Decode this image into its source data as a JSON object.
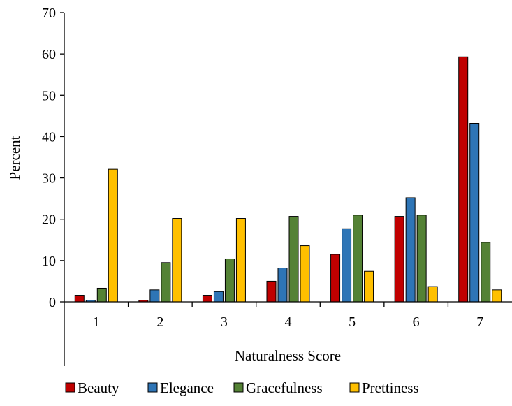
{
  "chart_data": {
    "type": "bar",
    "categories": [
      "1",
      "2",
      "3",
      "4",
      "5",
      "6",
      "7"
    ],
    "series": [
      {
        "name": "Beauty",
        "color": "#C00000",
        "values": [
          1.6,
          0.4,
          1.6,
          5.0,
          11.5,
          20.7,
          59.3
        ]
      },
      {
        "name": "Elegance",
        "color": "#2E75B6",
        "values": [
          0.4,
          2.9,
          2.5,
          8.2,
          17.7,
          25.2,
          43.2
        ]
      },
      {
        "name": "Gracefulness",
        "color": "#548235",
        "values": [
          3.3,
          9.5,
          10.4,
          20.7,
          21.0,
          21.0,
          14.4
        ]
      },
      {
        "name": "Prettiness",
        "color": "#FFC000",
        "values": [
          32.1,
          20.2,
          20.2,
          13.6,
          7.4,
          3.7,
          2.9
        ]
      }
    ],
    "title": "",
    "xlabel": "Naturalness Score",
    "ylabel": "Percent",
    "ylim": [
      0,
      70
    ],
    "yticks": [
      0,
      10,
      20,
      30,
      40,
      50,
      60,
      70
    ],
    "grid": false,
    "legend_position": "bottom"
  }
}
